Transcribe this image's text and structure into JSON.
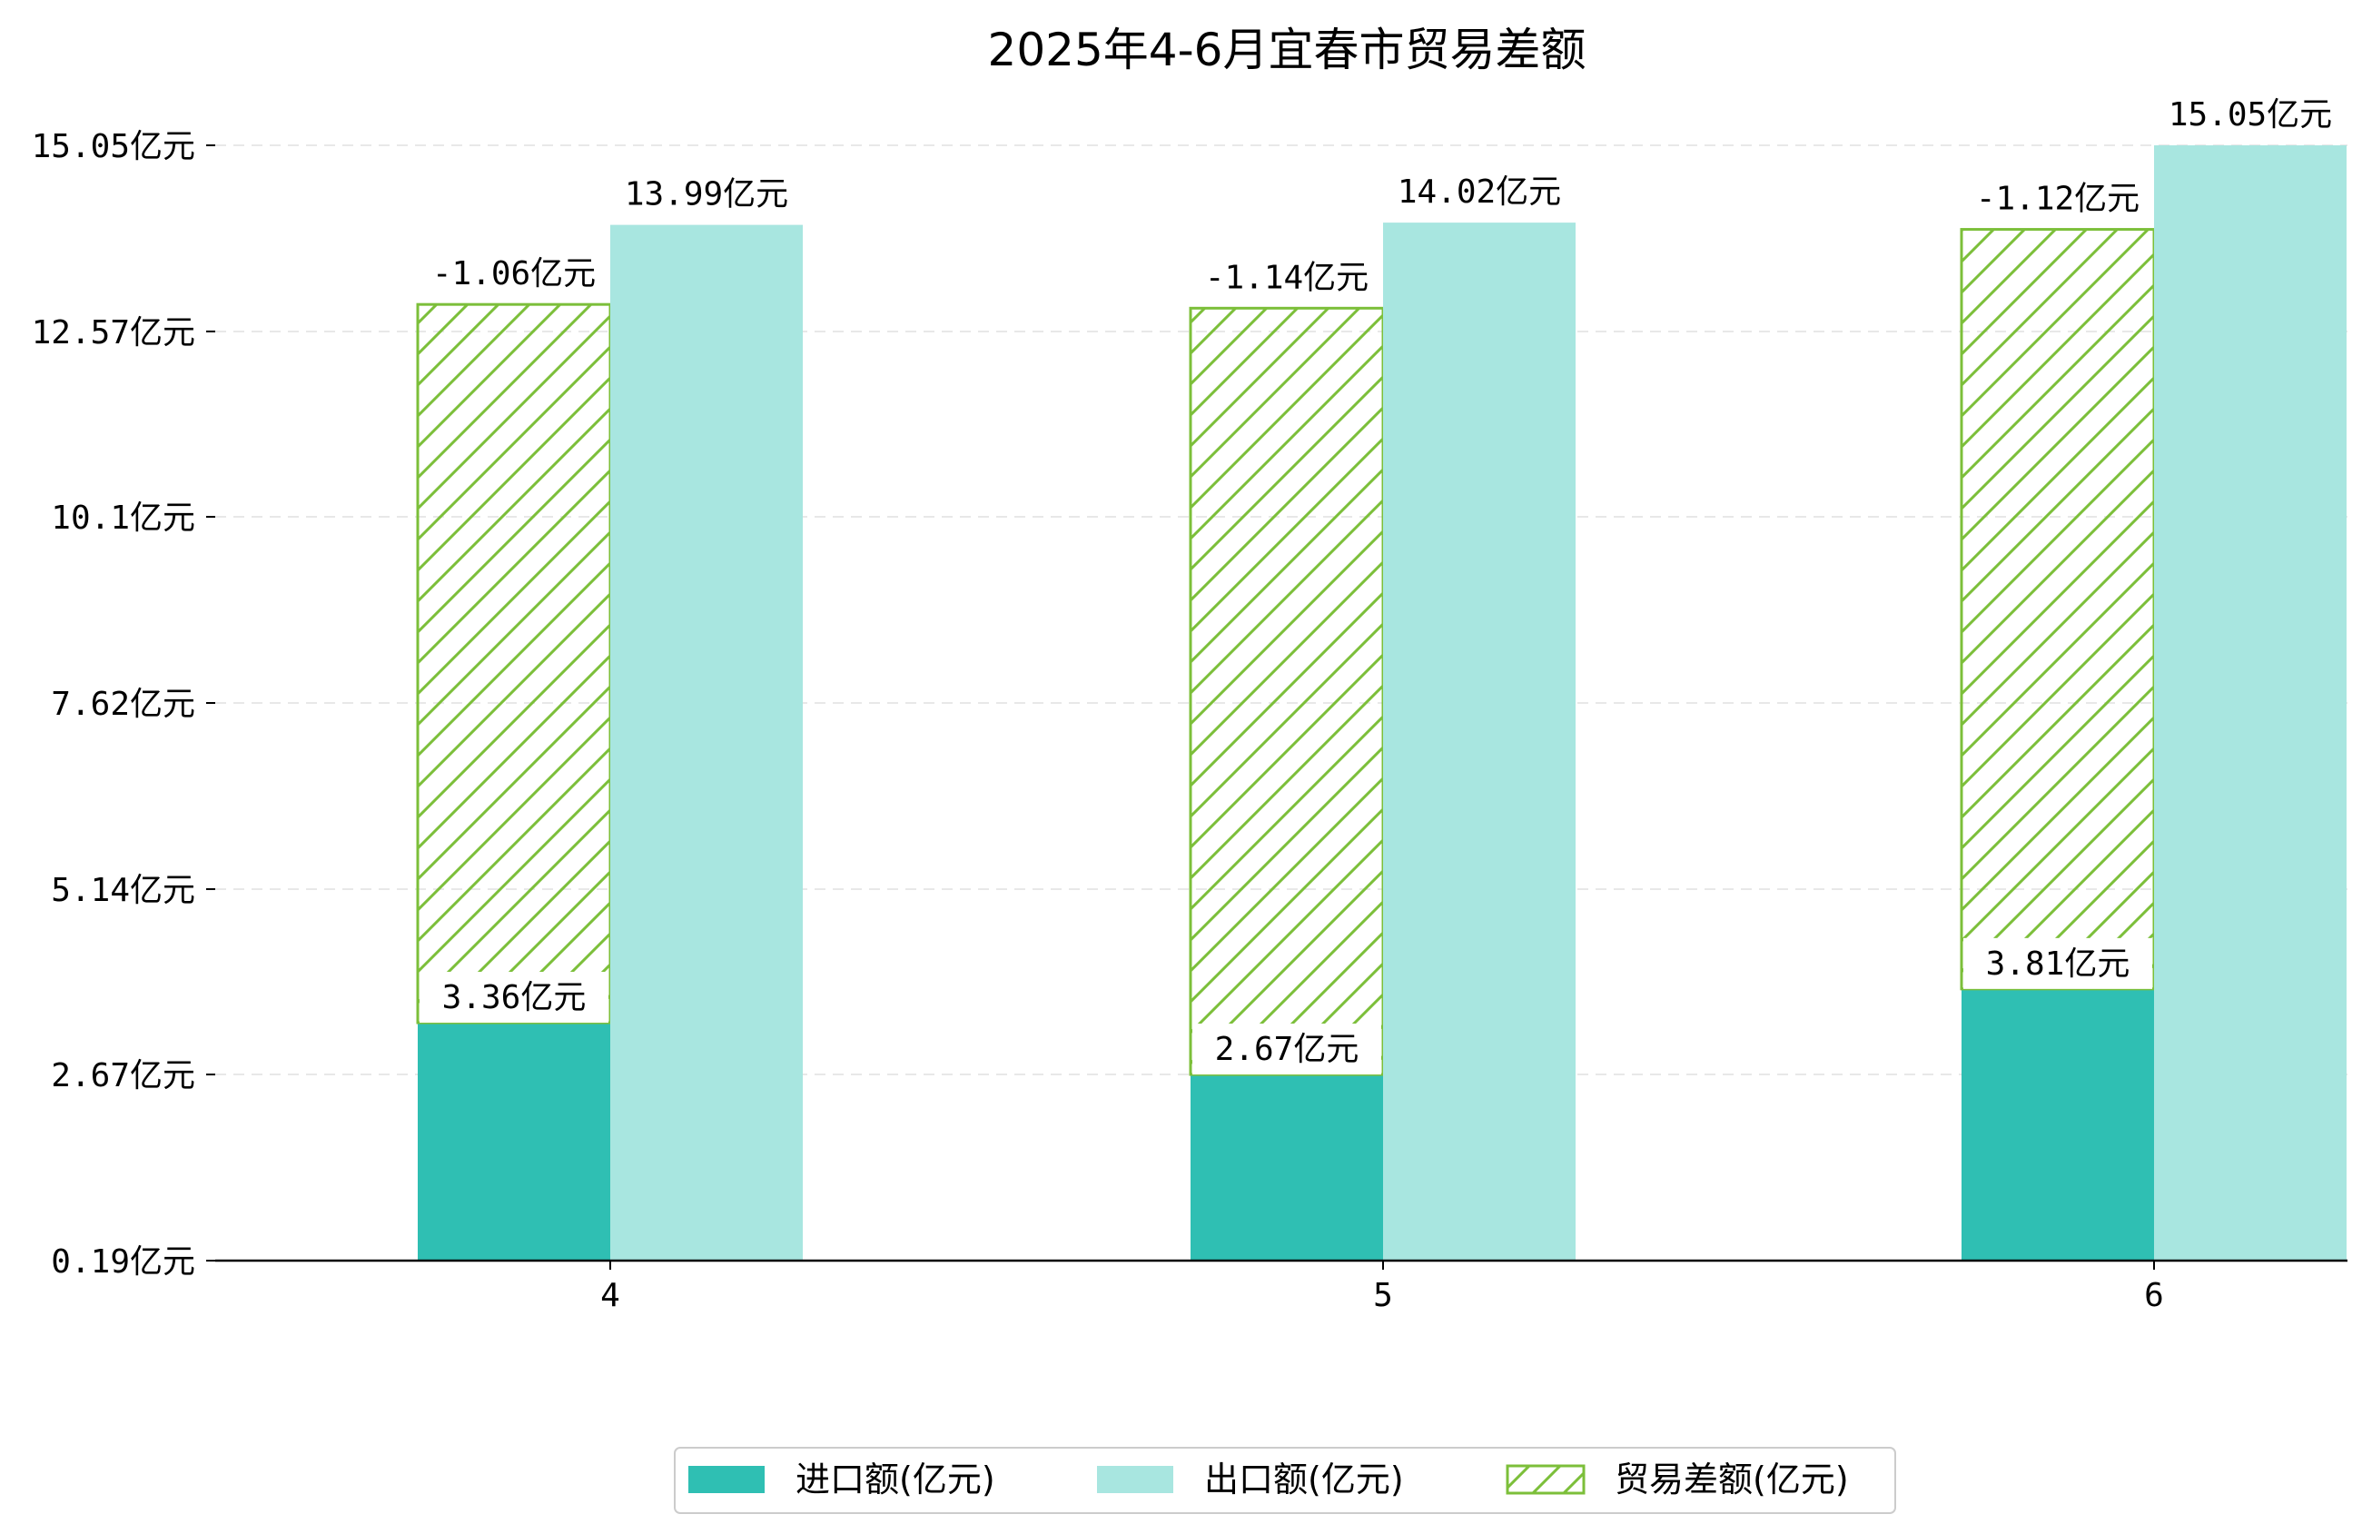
{
  "chart_data": {
    "type": "bar",
    "title": "2025年4-6月宜春市贸易差额",
    "categories": [
      "4",
      "5",
      "6"
    ],
    "series": [
      {
        "name": "进口额(亿元)",
        "values": [
          3.36,
          2.67,
          3.81
        ],
        "labels": [
          "3.36亿元",
          "2.67亿元",
          "3.81亿元"
        ],
        "color": "#2fbfb3",
        "stacked_base": true
      },
      {
        "name": "贸易差额(亿元)",
        "values": [
          -1.06,
          -1.14,
          -1.12
        ],
        "labels": [
          "-1.06亿元",
          "-1.14亿元",
          "-1.12亿元"
        ],
        "color": "#7cbf3a",
        "hatched": true
      },
      {
        "name": "出口额(亿元)",
        "values": [
          13.99,
          14.02,
          15.05
        ],
        "labels": [
          "13.99亿元",
          "14.02亿元",
          "15.05亿元"
        ],
        "color": "#a8e6e0"
      }
    ],
    "y_ticks": [
      "0.19亿元",
      "2.67亿元",
      "5.14亿元",
      "7.62亿元",
      "10.1亿元",
      "12.57亿元",
      "15.05亿元"
    ],
    "ylim": [
      0.19,
      15.05
    ],
    "grid": "y-dashed",
    "legend": {
      "position": "bottom-center",
      "entries": [
        {
          "label": "进口额(亿元)",
          "color": "#2fbfb3",
          "style": "solid"
        },
        {
          "label": "出口额(亿元)",
          "color": "#a8e6e0",
          "style": "solid"
        },
        {
          "label": "贸易差额(亿元)",
          "color": "#7cbf3a",
          "style": "hatch"
        }
      ]
    }
  }
}
